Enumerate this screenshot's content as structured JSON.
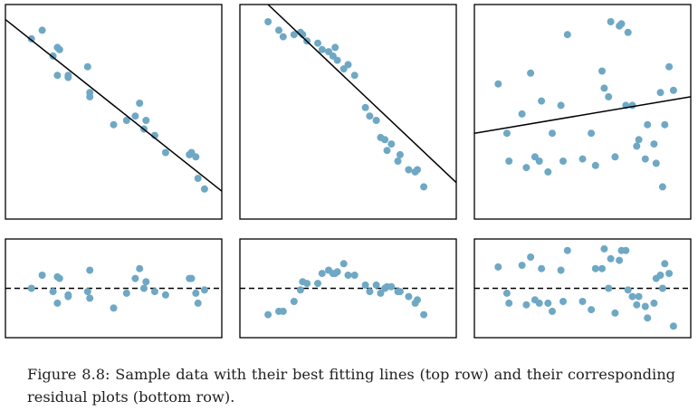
{
  "caption": {
    "label": "Figure 8.8:",
    "text": "Sample data with their best fitting lines (top row) and their corresponding residual plots (bottom row)."
  },
  "colors": {
    "point": "#6fa8c4",
    "fit_line": "#000000",
    "zero_line": "#000000",
    "frame": "#000000"
  },
  "chart_data": [
    {
      "type": "scatter",
      "row": "top",
      "column": 1,
      "xlim": [
        0,
        10
      ],
      "ylim": [
        0,
        10
      ],
      "x": [
        1.2,
        1.7,
        2.2,
        2.4,
        2.5,
        2.4,
        2.9,
        2.9,
        3.8,
        3.9,
        3.9,
        5.0,
        5.6,
        6.0,
        6.2,
        6.4,
        6.5,
        6.9,
        7.4,
        8.5,
        8.6,
        8.8,
        8.9,
        9.2
      ],
      "y": [
        8.4,
        8.8,
        7.6,
        8.0,
        7.9,
        6.7,
        6.6,
        6.7,
        7.1,
        5.9,
        5.7,
        4.4,
        4.6,
        4.8,
        5.4,
        4.2,
        4.6,
        3.9,
        3.1,
        3.0,
        3.1,
        2.9,
        1.9,
        1.4
      ],
      "fit": {
        "type": "line",
        "x": [
          0,
          10
        ],
        "y": [
          9.3,
          1.3
        ],
        "style": "solid"
      },
      "grid": false,
      "legend": "none",
      "axis_ticks": false
    },
    {
      "type": "scatter",
      "row": "top",
      "column": 2,
      "xlim": [
        0,
        10
      ],
      "ylim": [
        0,
        10
      ],
      "x": [
        1.3,
        1.8,
        2.0,
        2.5,
        2.8,
        2.9,
        3.1,
        3.6,
        3.8,
        4.1,
        4.3,
        4.4,
        4.5,
        4.8,
        5.0,
        5.3,
        5.8,
        6.0,
        6.3,
        6.5,
        6.7,
        6.8,
        7.0,
        7.4,
        7.3,
        7.8,
        8.1,
        8.2,
        8.5
      ],
      "y": [
        9.2,
        8.8,
        8.5,
        8.6,
        8.7,
        8.6,
        8.3,
        8.2,
        7.9,
        7.8,
        7.6,
        8.0,
        7.4,
        7.0,
        7.2,
        6.7,
        5.2,
        4.8,
        4.6,
        3.8,
        3.7,
        3.2,
        3.5,
        3.0,
        2.7,
        2.3,
        2.2,
        2.3,
        1.5
      ],
      "fit": {
        "type": "line",
        "x": [
          1.3,
          10
        ],
        "y": [
          10.0,
          1.7
        ],
        "style": "solid"
      },
      "grid": false,
      "legend": "none",
      "axis_ticks": false
    },
    {
      "type": "scatter",
      "row": "top",
      "column": 3,
      "xlim": [
        0,
        10
      ],
      "ylim": [
        0,
        10
      ],
      "x": [
        1.1,
        1.5,
        1.6,
        2.2,
        2.4,
        2.6,
        2.8,
        3.0,
        3.1,
        3.4,
        3.6,
        4.0,
        4.1,
        4.3,
        5.0,
        5.4,
        5.6,
        5.9,
        6.0,
        6.2,
        6.3,
        6.5,
        6.7,
        6.8,
        7.0,
        7.1,
        7.3,
        7.5,
        7.6,
        7.9,
        8.0,
        8.3,
        8.4,
        8.6,
        8.7,
        8.8,
        9.0,
        9.2
      ],
      "y": [
        6.3,
        4.0,
        2.7,
        4.9,
        2.4,
        6.8,
        2.9,
        2.7,
        5.5,
        2.2,
        4.0,
        5.3,
        2.7,
        8.6,
        2.8,
        4.0,
        2.5,
        6.9,
        6.1,
        5.7,
        9.2,
        2.9,
        9.0,
        9.1,
        5.3,
        8.7,
        5.3,
        3.4,
        3.7,
        2.8,
        4.4,
        3.5,
        2.6,
        5.9,
        1.5,
        4.4,
        7.1,
        6.0
      ],
      "fit": {
        "type": "line",
        "x": [
          0,
          10
        ],
        "y": [
          4.0,
          5.7
        ],
        "style": "solid"
      },
      "grid": false,
      "legend": "none",
      "axis_ticks": false
    },
    {
      "type": "scatter",
      "row": "bottom",
      "column": 1,
      "xlim": [
        0,
        10
      ],
      "ylim": [
        -3,
        3
      ],
      "x": [
        1.2,
        1.7,
        2.2,
        2.4,
        2.5,
        2.4,
        2.9,
        2.9,
        3.8,
        3.9,
        3.9,
        5.0,
        5.6,
        6.0,
        6.2,
        6.4,
        6.5,
        6.9,
        7.4,
        8.5,
        8.6,
        8.8,
        8.9,
        9.2
      ],
      "y": [
        0.0,
        0.8,
        -0.2,
        0.7,
        0.6,
        -0.9,
        -0.5,
        -0.4,
        -0.2,
        1.1,
        -0.6,
        -1.2,
        -0.3,
        0.6,
        1.2,
        0.0,
        0.4,
        -0.2,
        -0.4,
        0.6,
        0.6,
        -0.3,
        -0.9,
        -0.1
      ],
      "reference_line": {
        "y": 0,
        "style": "dashed"
      },
      "grid": false,
      "legend": "none",
      "axis_ticks": false
    },
    {
      "type": "scatter",
      "row": "bottom",
      "column": 2,
      "xlim": [
        0,
        10
      ],
      "ylim": [
        -3,
        3
      ],
      "x": [
        1.3,
        1.8,
        2.0,
        2.5,
        2.8,
        2.9,
        3.1,
        3.6,
        3.8,
        4.1,
        4.3,
        4.4,
        4.5,
        4.8,
        5.0,
        5.3,
        5.8,
        6.0,
        6.3,
        6.5,
        6.7,
        6.8,
        7.0,
        7.4,
        7.3,
        7.8,
        8.1,
        8.2,
        8.5
      ],
      "y": [
        -1.6,
        -1.4,
        -1.4,
        -0.8,
        -0.1,
        0.4,
        0.3,
        0.3,
        0.9,
        1.1,
        0.9,
        0.9,
        1.0,
        1.5,
        0.8,
        0.8,
        0.2,
        -0.2,
        0.2,
        -0.3,
        0.0,
        0.1,
        0.1,
        -0.2,
        -0.2,
        -0.5,
        -0.9,
        -0.7,
        -1.6
      ],
      "reference_line": {
        "y": 0,
        "style": "dashed"
      },
      "grid": false,
      "legend": "none",
      "axis_ticks": false
    },
    {
      "type": "scatter",
      "row": "bottom",
      "column": 3,
      "xlim": [
        0,
        10
      ],
      "ylim": [
        -3,
        3
      ],
      "x": [
        1.1,
        1.5,
        1.6,
        2.2,
        2.4,
        2.6,
        2.8,
        3.0,
        3.1,
        3.4,
        3.6,
        4.0,
        4.1,
        4.3,
        5.0,
        5.4,
        5.6,
        5.9,
        6.0,
        6.2,
        6.3,
        6.5,
        6.7,
        6.8,
        7.0,
        7.1,
        7.3,
        7.5,
        7.6,
        7.9,
        8.0,
        8.3,
        8.4,
        8.6,
        8.7,
        8.8,
        9.0,
        9.2
      ],
      "y": [
        1.3,
        -0.3,
        -0.9,
        1.4,
        -1.0,
        1.9,
        -0.7,
        -0.9,
        1.2,
        -0.9,
        -1.4,
        1.1,
        -0.8,
        2.3,
        -0.8,
        -1.3,
        1.2,
        1.2,
        2.4,
        0.0,
        1.8,
        -1.5,
        1.7,
        2.3,
        2.3,
        -0.1,
        -0.5,
        -1.0,
        -0.5,
        -1.1,
        -1.8,
        -0.9,
        0.6,
        0.8,
        0.0,
        1.5,
        0.9,
        -2.3
      ],
      "reference_line": {
        "y": 0,
        "style": "dashed"
      },
      "grid": false,
      "legend": "none",
      "axis_ticks": false
    }
  ]
}
